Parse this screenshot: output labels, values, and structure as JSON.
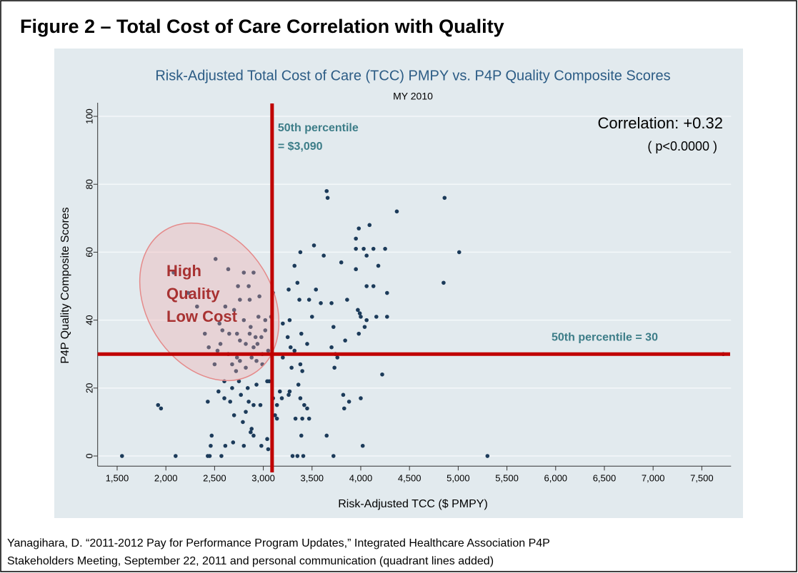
{
  "figure_title": "Figure 2 – Total Cost of Care Correlation with Quality",
  "caption": [
    "Yanagihara, D. “2011-2012 Pay for Performance Program Updates,” Integrated Healthcare Association P4P",
    "Stakeholders Meeting, September 22, 2011 and personal communication (quadrant lines added)"
  ],
  "chart_data": {
    "type": "scatter",
    "title": "Risk-Adjusted Total Cost of Care (TCC) PMPY vs. P4P Quality Composite Scores",
    "subtitle": "MY 2010",
    "x_label": "Risk-Adjusted TCC ($ PMPY)",
    "y_label": "P4P Quality Composite Scores",
    "xlim": [
      1300,
      7800
    ],
    "ylim": [
      -3,
      104
    ],
    "xticks": [
      {
        "value": 1500,
        "label": "1,500"
      },
      {
        "value": 2000,
        "label": "2,000"
      },
      {
        "value": 2500,
        "label": "2,500"
      },
      {
        "value": 3000,
        "label": "3,000"
      },
      {
        "value": 3500,
        "label": "3,500"
      },
      {
        "value": 4000,
        "label": "4,000"
      },
      {
        "value": 4500,
        "label": "4,500"
      },
      {
        "value": 5000,
        "label": "5,000"
      },
      {
        "value": 5500,
        "label": "5,500"
      },
      {
        "value": 6000,
        "label": "6,000"
      },
      {
        "value": 6500,
        "label": "6,500"
      },
      {
        "value": 7000,
        "label": "7,000"
      },
      {
        "value": 7500,
        "label": "7,500"
      }
    ],
    "yticks": [
      0,
      20,
      40,
      60,
      80,
      100
    ],
    "grid": true,
    "series": [
      {
        "color": "#1c3b5a",
        "x": [
          3650,
          3660,
          4860,
          4370,
          3980,
          4090,
          3950,
          5010,
          4850,
          4130,
          3950,
          4060,
          4030,
          4250,
          3800,
          4180,
          3950,
          3620,
          3520,
          3380,
          3320,
          3260,
          3350,
          3540,
          3700,
          3860,
          3970,
          3990,
          4060,
          4130,
          4270,
          4270,
          4160,
          4060,
          4000,
          4040,
          3470,
          3370,
          3270,
          3200,
          3100,
          3080,
          3500,
          3720,
          3980,
          3840,
          3390,
          3450,
          3280,
          3250,
          3320,
          3700,
          3740,
          3590,
          3200,
          3290,
          3380,
          3400,
          3730,
          3760,
          4220,
          3360,
          3170,
          3270,
          3260,
          3040,
          3060,
          3100,
          3190,
          3140,
          3120,
          3140,
          3380,
          3420,
          3450,
          3400,
          3470,
          3330,
          3820,
          3880,
          4000,
          3830,
          3390,
          3650,
          3040,
          4020,
          3300,
          3350,
          3410,
          3720,
          5300,
          7720,
          2510,
          2640,
          2800,
          2900,
          2080,
          2230,
          2740,
          2850,
          2760,
          2860,
          2960,
          2320,
          2610,
          2700,
          2950,
          3020,
          2800,
          2870,
          2550,
          2580,
          2650,
          2730,
          2860,
          2920,
          2980,
          2760,
          2820,
          2900,
          2560,
          2440,
          2400,
          2530,
          2640,
          2730,
          2760,
          2820,
          2680,
          2720,
          2880,
          2940,
          2990,
          3020,
          3050,
          2500,
          2540,
          2430,
          2600,
          2660,
          2600,
          2750,
          2840,
          2930,
          2770,
          2850,
          2900,
          2970,
          2820,
          2700,
          2790,
          2870,
          2900,
          2880,
          2980,
          3050,
          2690,
          2610,
          2800,
          2460,
          2470,
          2430,
          2450,
          2570,
          1920,
          1950,
          1550,
          2100,
          2680,
          2930,
          2990
        ],
        "values": [
          78,
          76,
          76,
          72,
          67,
          68,
          64,
          60,
          51,
          61,
          61,
          59,
          61,
          61,
          57,
          56,
          55,
          59,
          62,
          60,
          56,
          49,
          51,
          49,
          45,
          46,
          43,
          42,
          50,
          50,
          48,
          41,
          41,
          40,
          41,
          38,
          46,
          46,
          40,
          39,
          48,
          41,
          41,
          38,
          36,
          34,
          36,
          33,
          32,
          35,
          31,
          32,
          30,
          45,
          29,
          26,
          27,
          25,
          26,
          29,
          24,
          21,
          19,
          19,
          18,
          22,
          22,
          17,
          17,
          15,
          12,
          11,
          17,
          15,
          14,
          11,
          11,
          11,
          18,
          16,
          17,
          14,
          6,
          6,
          5,
          3,
          0,
          0,
          0,
          0,
          0,
          30,
          58,
          55,
          54,
          54,
          54,
          48,
          50,
          50,
          46,
          46,
          47,
          44,
          44,
          43,
          41,
          40,
          40,
          38,
          39,
          37,
          36,
          36,
          36,
          35,
          35,
          34,
          33,
          32,
          33,
          32,
          36,
          31,
          30,
          29,
          28,
          26,
          27,
          25,
          29,
          33,
          30,
          37,
          31,
          27,
          19,
          16,
          17,
          16,
          22,
          22,
          20,
          21,
          18,
          16,
          15,
          15,
          13,
          12,
          10,
          7,
          6,
          8,
          3,
          2,
          4,
          3,
          3,
          3,
          6,
          0,
          0,
          0,
          15,
          14,
          0,
          0,
          20,
          28,
          27
        ]
      }
    ],
    "reference_lines": [
      {
        "axis": "x",
        "value": 3090,
        "color": "#c00000",
        "label_lines": [
          "50th percentile",
          "= $3,090"
        ]
      },
      {
        "axis": "y",
        "value": 30,
        "color": "#c00000",
        "label_lines": [
          "50th percentile  = 30"
        ]
      }
    ],
    "annotations": [
      "Correlation: +0.32",
      "( p<0.0000 )"
    ],
    "highlight_text": [
      "High",
      "Quality",
      "Low Cost"
    ]
  }
}
